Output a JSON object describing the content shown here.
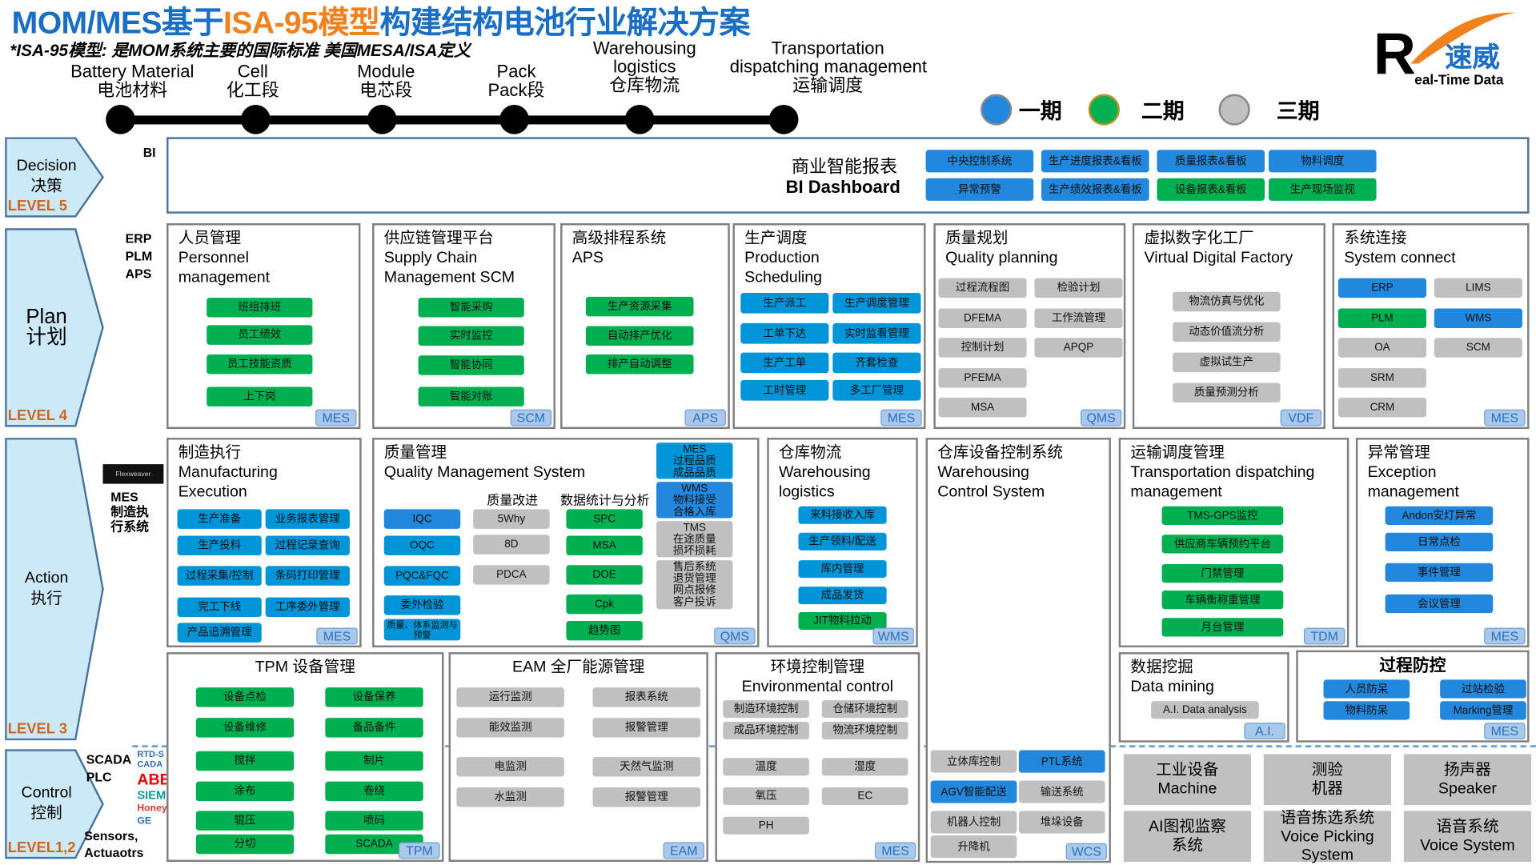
{
  "header": {
    "title_part1": "MOM/MES基于",
    "title_highlight": "ISA-95模型",
    "title_part2": "构建结构电池行业解决方案",
    "subtitle": "*ISA-95模型: 是MOM系统主要的国际标准 美国MESA/ISA定义"
  },
  "timeline": [
    {
      "lines": [
        "Battery Material",
        "电池材料"
      ]
    },
    {
      "lines": [
        "Cell",
        "化工段"
      ]
    },
    {
      "lines": [
        "Module",
        "电芯段"
      ]
    },
    {
      "lines": [
        "Pack",
        "Pack段"
      ]
    },
    {
      "lines": [
        "Warehousing",
        "logistics",
        "仓库物流"
      ]
    },
    {
      "lines": [
        "Transportation",
        "dispatching management",
        "运输调度"
      ]
    }
  ],
  "legend": [
    {
      "label": "一期",
      "color": "#2288dd"
    },
    {
      "label": "二期",
      "color": "#00b050"
    },
    {
      "label": "三期",
      "color": "#c0c0c0"
    }
  ],
  "logo": {
    "letter": "R",
    "cn": "速威",
    "en": "eal-Time Data"
  },
  "levels": [
    {
      "en": "Decision",
      "cn": "决策",
      "level": "LEVEL 5"
    },
    {
      "en": "Plan",
      "cn": "计划",
      "level": "LEVEL 4"
    },
    {
      "en": "Action",
      "cn": "执行",
      "level": "LEVEL 3"
    },
    {
      "en": "Control",
      "cn": "控制",
      "level": "LEVEL1,2"
    }
  ],
  "side_labels": {
    "bi": "BI",
    "plan": [
      "ERP",
      "PLM",
      "APS"
    ],
    "flexweaver": "Flexweaver",
    "mes": [
      "MES",
      "制造执",
      "行系统"
    ],
    "scada": [
      "SCADA",
      "PLC"
    ],
    "sensors": [
      "Sensors,",
      "Actuaotrs"
    ]
  },
  "vendors": [
    "RTD-SCADA",
    "ABB",
    "SIEMENS",
    "Honeywell",
    "GE"
  ],
  "bi": {
    "title_cn": "商业智能报表",
    "title_en": "BI Dashboard",
    "buttons": [
      {
        "label": "中央控制系统",
        "phase": 1
      },
      {
        "label": "生产进度报表&看板",
        "phase": 1
      },
      {
        "label": "质量报表&看板",
        "phase": 1
      },
      {
        "label": "物料调度",
        "phase": 1
      },
      {
        "label": "异常预警",
        "phase": 1
      },
      {
        "label": "生产绩效报表&看板",
        "phase": 1
      },
      {
        "label": "设备报表&看板",
        "phase": 2
      },
      {
        "label": "生产现场监视",
        "phase": 2
      }
    ]
  },
  "sections": [
    {
      "title": [
        "人员管理",
        "Personnel",
        "management"
      ],
      "tag": "MES",
      "buttons": [
        {
          "label": "班组排班",
          "phase": 2
        },
        {
          "label": "员工绩效",
          "phase": 2
        },
        {
          "label": "员工技能资质",
          "phase": 2
        },
        {
          "label": "上下岗",
          "phase": 2
        }
      ]
    },
    {
      "title": [
        "供应链管理平台",
        "Supply Chain",
        "Management SCM"
      ],
      "tag": "SCM",
      "buttons": [
        {
          "label": "智能采购",
          "phase": 2
        },
        {
          "label": "实时监控",
          "phase": 2
        },
        {
          "label": "智能协同",
          "phase": 2
        },
        {
          "label": "智能对账",
          "phase": 2
        }
      ]
    },
    {
      "title": [
        "高级排程系统",
        "APS"
      ],
      "tag": "APS",
      "buttons": [
        {
          "label": "生产资源采集",
          "phase": 2
        },
        {
          "label": "自动排产优化",
          "phase": 2
        },
        {
          "label": "排产自动调整",
          "phase": 2
        }
      ]
    },
    {
      "title": [
        "生产调度",
        "Production",
        "Scheduling"
      ],
      "tag": "MES",
      "buttons": [
        {
          "label": "生产派工",
          "phase": 1
        },
        {
          "label": "生产调度管理",
          "phase": 1
        },
        {
          "label": "工单下达",
          "phase": 1
        },
        {
          "label": "实时监看管理",
          "phase": 1
        },
        {
          "label": "生产工单",
          "phase": 1
        },
        {
          "label": "齐套检查",
          "phase": 1
        },
        {
          "label": "工时管理",
          "phase": 1
        },
        {
          "label": "多工厂管理",
          "phase": 1
        }
      ]
    },
    {
      "title": [
        "质量规划",
        "Quality planning"
      ],
      "tag": "QMS",
      "buttons": [
        {
          "label": "过程流程图",
          "phase": 3
        },
        {
          "label": "检验计划",
          "phase": 3
        },
        {
          "label": "DFEMA",
          "phase": 3
        },
        {
          "label": "工作流管理",
          "phase": 3
        },
        {
          "label": "控制计划",
          "phase": 3
        },
        {
          "label": "APQP",
          "phase": 3
        },
        {
          "label": "PFEMA",
          "phase": 3
        },
        {
          "label": "MSA",
          "phase": 3
        }
      ]
    },
    {
      "title": [
        "虚拟数字化工厂",
        "Virtual Digital Factory"
      ],
      "tag": "VDF",
      "buttons": [
        {
          "label": "物流仿真与优化",
          "phase": 3
        },
        {
          "label": "动态价值流分析",
          "phase": 3
        },
        {
          "label": "虚拟试生产",
          "phase": 3
        },
        {
          "label": "质量预测分析",
          "phase": 3
        }
      ]
    },
    {
      "title": [
        "系统连接",
        "System connect"
      ],
      "tag": "MES",
      "buttons": [
        {
          "label": "ERP",
          "phase": 1
        },
        {
          "label": "LIMS",
          "phase": 3
        },
        {
          "label": "PLM",
          "phase": 2
        },
        {
          "label": "WMS",
          "phase": 1
        },
        {
          "label": "OA",
          "phase": 3
        },
        {
          "label": "SCM",
          "phase": 3
        },
        {
          "label": "SRM",
          "phase": 3
        },
        {
          "label": "CRM",
          "phase": 3
        }
      ]
    },
    {
      "title": [
        "制造执行",
        "Manufacturing",
        "Execution"
      ],
      "tag": "MES",
      "buttons": [
        {
          "label": "生产准备",
          "phase": 1
        },
        {
          "label": "业务报表管理",
          "phase": 1
        },
        {
          "label": "生产投料",
          "phase": 1
        },
        {
          "label": "过程记录查询",
          "phase": 1
        },
        {
          "label": "过程采集/控制",
          "phase": 1
        },
        {
          "label": "条码打印管理",
          "phase": 1
        },
        {
          "label": "完工下线",
          "phase": 1
        },
        {
          "label": "工序委外管理",
          "phase": 1
        },
        {
          "label": "产品追溯管理",
          "phase": 1
        }
      ]
    },
    {
      "title": [
        "质量管理",
        "Quality Management System"
      ],
      "tag": "QMS",
      "subheads": [
        "质量改进",
        "数据统计与分析"
      ],
      "buttons": [
        {
          "label": "IQC",
          "phase": 1
        },
        {
          "label": "OQC",
          "phase": 1
        },
        {
          "label": "PQC&FQC",
          "phase": 1
        },
        {
          "label": "委外检验",
          "phase": 1
        },
        {
          "label": "质量、体系监测与预警",
          "phase": 1
        },
        {
          "label": "5Why",
          "phase": 3
        },
        {
          "label": "8D",
          "phase": 3
        },
        {
          "label": "PDCA",
          "phase": 3
        },
        {
          "label": "SPC",
          "phase": 2
        },
        {
          "label": "MSA",
          "phase": 2
        },
        {
          "label": "DOE",
          "phase": 2
        },
        {
          "label": "Cpk",
          "phase": 2
        },
        {
          "label": "趋势图",
          "phase": 2
        },
        {
          "label": "MES\n过程品质\n成品品质",
          "phase": 1
        },
        {
          "label": "WMS\n物料接受\n合格入库",
          "phase": 1
        },
        {
          "label": "TMS\n在途质量\n损坏损耗",
          "phase": 3
        },
        {
          "label": "售后系统\n退货管理\n网点报修\n客户投诉",
          "phase": 3
        }
      ]
    },
    {
      "title": [
        "仓库物流",
        "Warehousing",
        "logistics"
      ],
      "tag": "WMS",
      "buttons": [
        {
          "label": "来料接收入库",
          "phase": 1
        },
        {
          "label": "生产领料/配送",
          "phase": 1
        },
        {
          "label": "库内管理",
          "phase": 1
        },
        {
          "label": "成品发货",
          "phase": 1
        },
        {
          "label": "JIT物料拉动",
          "phase": 2
        }
      ]
    },
    {
      "title": [
        "仓库设备控制系统",
        "Warehousing",
        "Control System"
      ],
      "tag": "WCS",
      "buttons": [
        {
          "label": "立体库控制",
          "phase": 3
        },
        {
          "label": "PTL系统",
          "phase": 1
        },
        {
          "label": "AGV智能配送",
          "phase": 1
        },
        {
          "label": "输送系统",
          "phase": 3
        },
        {
          "label": "机器人控制",
          "phase": 3
        },
        {
          "label": "堆垛设备",
          "phase": 3
        },
        {
          "label": "升降机",
          "phase": 3
        }
      ]
    },
    {
      "title": [
        "运输调度管理",
        "Transportation dispatching",
        "management"
      ],
      "tag": "TDM",
      "buttons": [
        {
          "label": "TMS-GPS监控",
          "phase": 2
        },
        {
          "label": "供应商车辆预约平台",
          "phase": 2
        },
        {
          "label": "门禁管理",
          "phase": 2
        },
        {
          "label": "车辆衡称重管理",
          "phase": 2
        },
        {
          "label": "月台管理",
          "phase": 2
        }
      ]
    },
    {
      "title": [
        "异常管理",
        "Exception",
        "management"
      ],
      "tag": "MES",
      "buttons": [
        {
          "label": "Andon安灯异常",
          "phase": 1
        },
        {
          "label": "日常点检",
          "phase": 1
        },
        {
          "label": "事件管理",
          "phase": 1
        },
        {
          "label": "会议管理",
          "phase": 1
        }
      ]
    },
    {
      "title": [
        "TPM 设备管理"
      ],
      "tag": "TPM",
      "buttons": [
        {
          "label": "设备点检",
          "phase": 2
        },
        {
          "label": "设备保养",
          "phase": 2
        },
        {
          "label": "设备维修",
          "phase": 2
        },
        {
          "label": "备品备件",
          "phase": 2
        },
        {
          "label": "搅拌",
          "phase": 2
        },
        {
          "label": "制片",
          "phase": 2
        },
        {
          "label": "涂布",
          "phase": 2
        },
        {
          "label": "卷绕",
          "phase": 2
        },
        {
          "label": "辊压",
          "phase": 2
        },
        {
          "label": "喷码",
          "phase": 2
        },
        {
          "label": "分切",
          "phase": 2
        },
        {
          "label": "SCADA",
          "phase": 2
        }
      ]
    },
    {
      "title": [
        "EAM 全厂能源管理"
      ],
      "tag": "EAM",
      "buttons": [
        {
          "label": "运行监测",
          "phase": 3
        },
        {
          "label": "报表系统",
          "phase": 3
        },
        {
          "label": "能效监测",
          "phase": 3
        },
        {
          "label": "报警管理",
          "phase": 3
        },
        {
          "label": "电监测",
          "phase": 3
        },
        {
          "label": "天然气监测",
          "phase": 3
        },
        {
          "label": "水监测",
          "phase": 3
        },
        {
          "label": "报警管理",
          "phase": 3
        }
      ]
    },
    {
      "title": [
        "环境控制管理",
        "Environmental control"
      ],
      "tag": "MES",
      "buttons": [
        {
          "label": "制造环境控制",
          "phase": 3
        },
        {
          "label": "仓储环境控制",
          "phase": 3
        },
        {
          "label": "成品环境控制",
          "phase": 3
        },
        {
          "label": "物流环境控制",
          "phase": 3
        },
        {
          "label": "温度",
          "phase": 3
        },
        {
          "label": "湿度",
          "phase": 3
        },
        {
          "label": "氧压",
          "phase": 3
        },
        {
          "label": "EC",
          "phase": 3
        },
        {
          "label": "PH",
          "phase": 3
        }
      ]
    },
    {
      "title": [
        "数据挖掘",
        "Data mining"
      ],
      "tag": "A.I.",
      "buttons": [
        {
          "label": "A.I. Data analysis",
          "phase": 3
        }
      ]
    },
    {
      "title": [
        "过程防控"
      ],
      "tag": "MES",
      "buttons": [
        {
          "label": "人员防呆",
          "phase": 1
        },
        {
          "label": "过站检验",
          "phase": 1
        },
        {
          "label": "物料防呆",
          "phase": 1
        },
        {
          "label": "Marking管理",
          "phase": 1
        }
      ]
    }
  ],
  "devices": [
    "工业设备\nMachine",
    "测验\n机器",
    "扬声器\nSpeaker",
    "AI图视监察\n系统",
    "语音拣选系统\nVoice  Picking\nSystem",
    "语音系统\nVoice System"
  ]
}
